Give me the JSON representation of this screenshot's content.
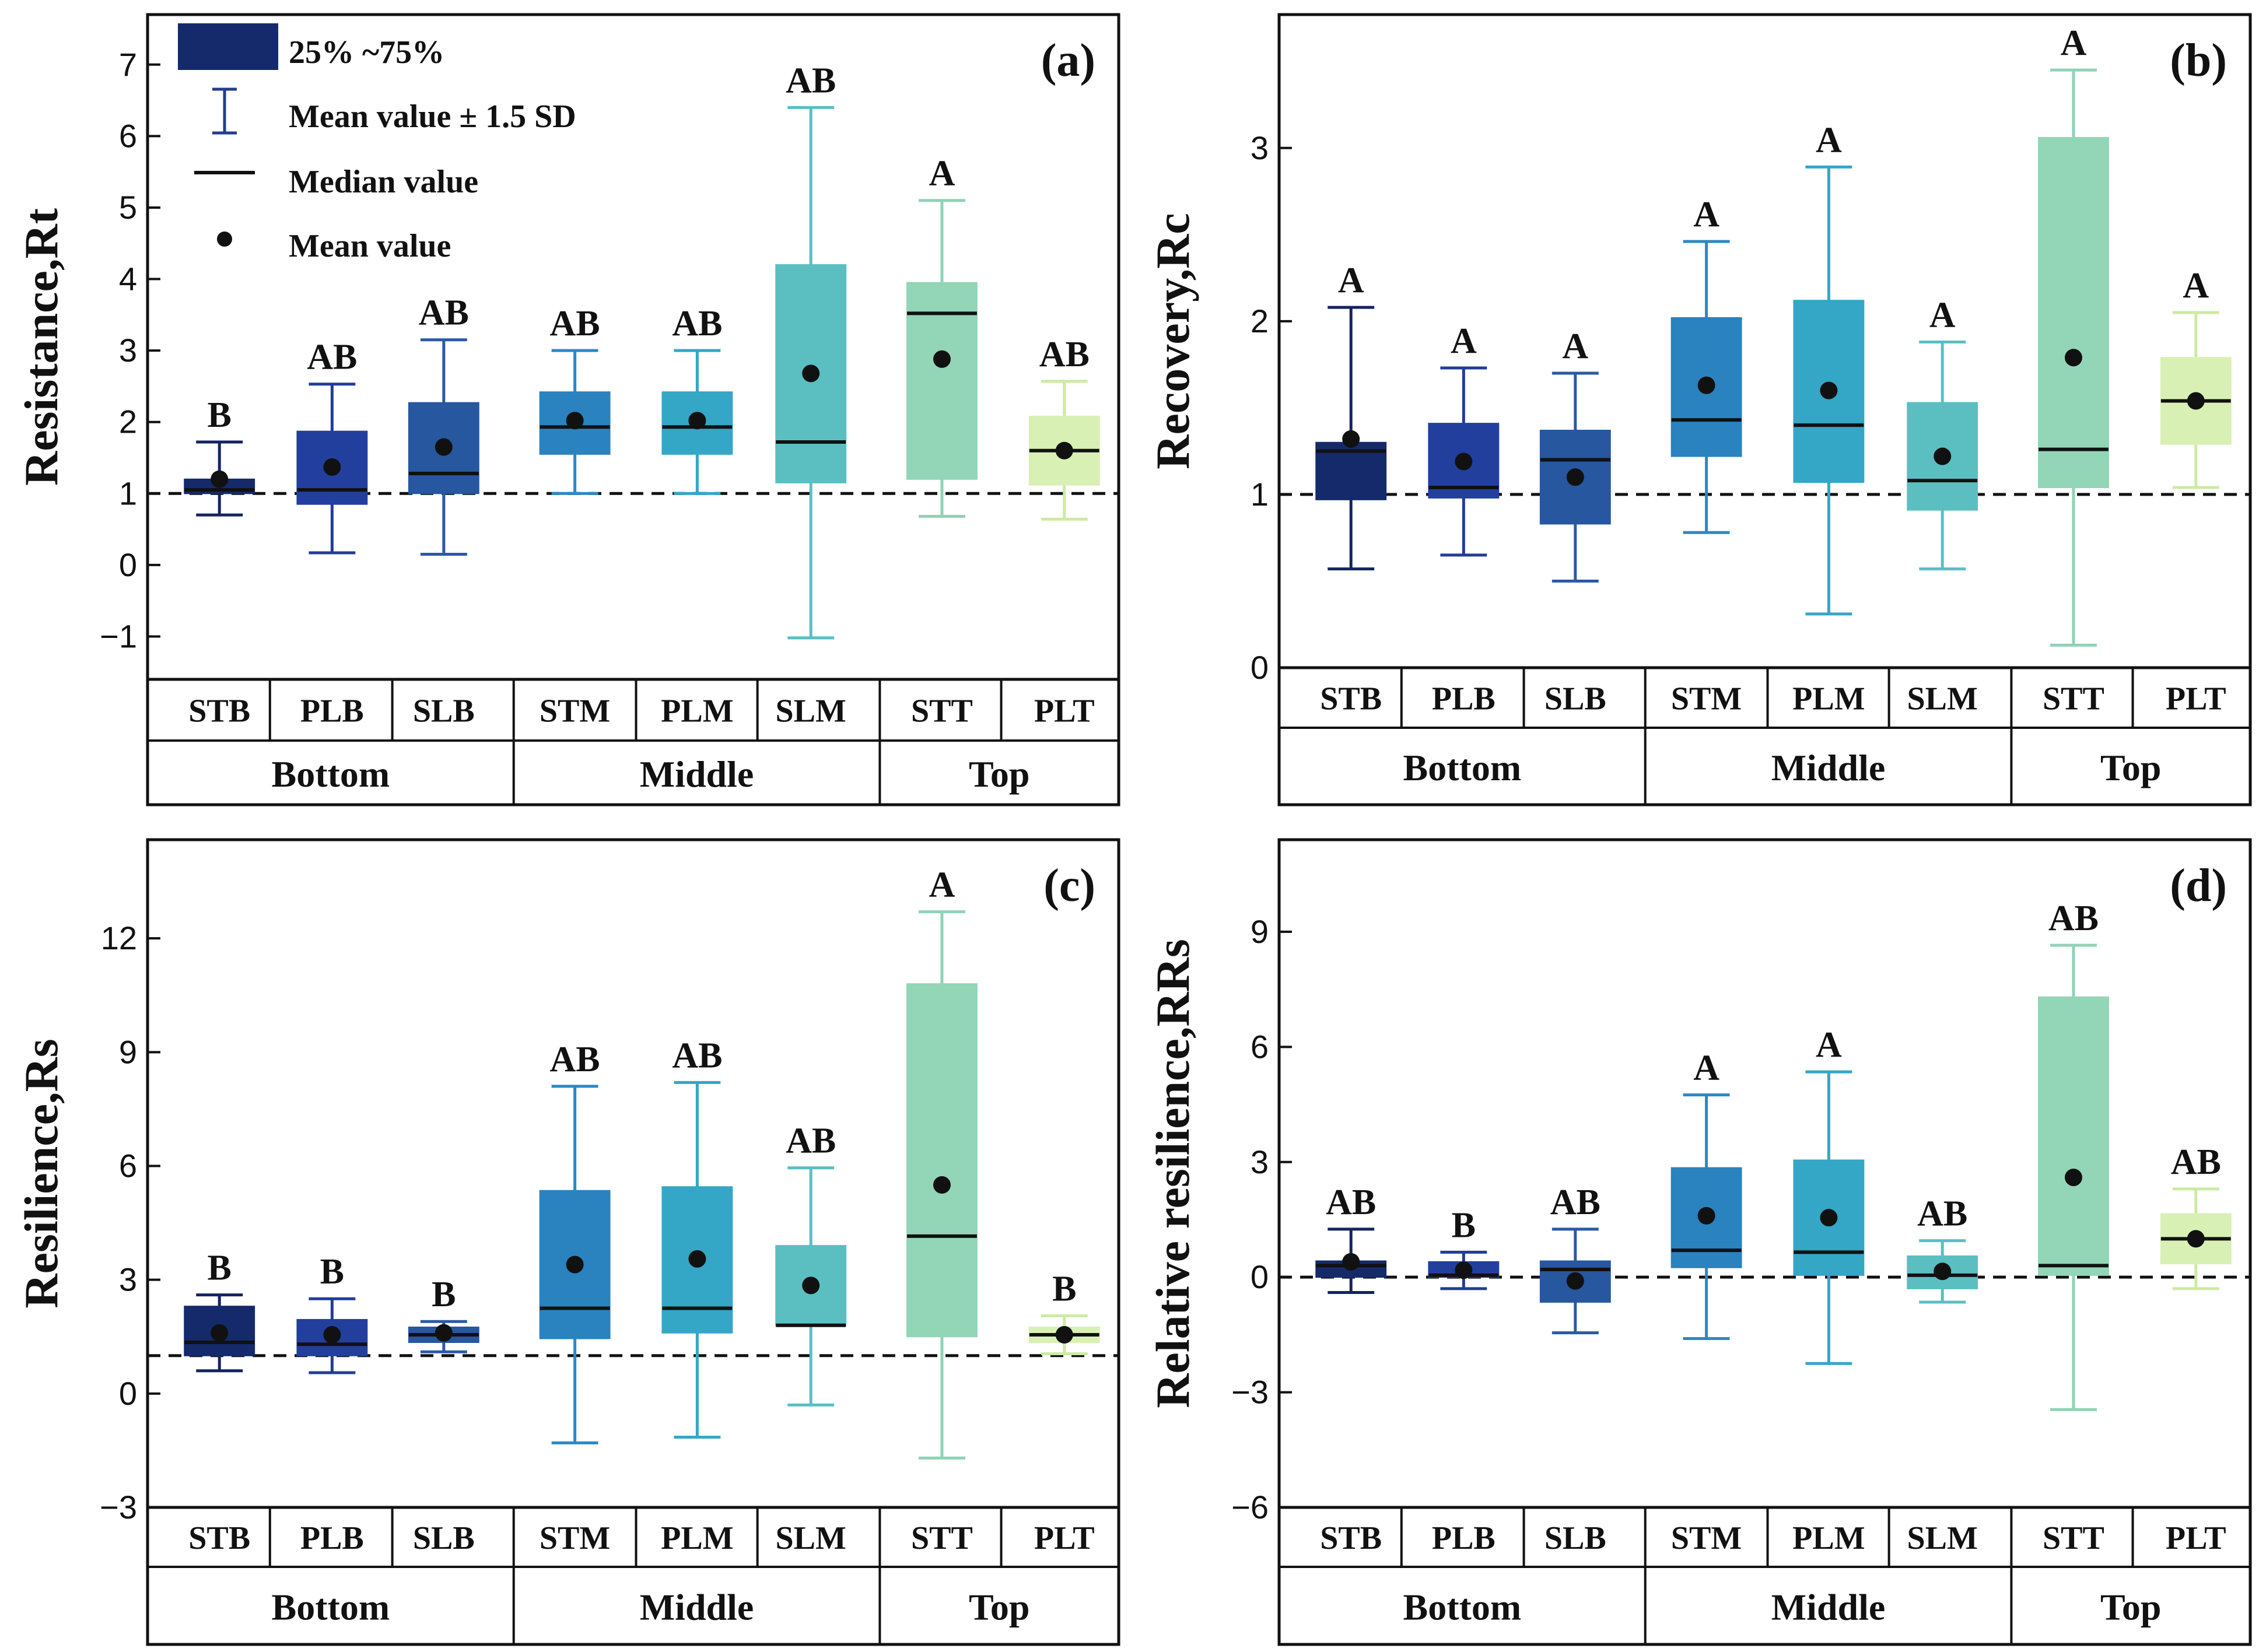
{
  "chart_data": [
    {
      "type": "box",
      "panel": "(a)",
      "ylabel": "Resistance,Rt",
      "ylim": [
        -1.6,
        7.7
      ],
      "yticks": [
        -1,
        0,
        1,
        2,
        3,
        4,
        5,
        6,
        7
      ],
      "reference_line": 1,
      "categories": [
        "STB",
        "PLB",
        "SLB",
        "STM",
        "PLM",
        "SLM",
        "STT",
        "PLT"
      ],
      "groups": [
        {
          "name": "Bottom",
          "span": 3
        },
        {
          "name": "Middle",
          "span": 3
        },
        {
          "name": "Top",
          "span": 2
        }
      ],
      "boxes": [
        {
          "q1": 1.0,
          "q3": 1.2,
          "median": 1.05,
          "mean": 1.2,
          "wlo": 0.7,
          "whi": 1.72,
          "sig": "B"
        },
        {
          "q1": 0.85,
          "q3": 1.87,
          "median": 1.05,
          "mean": 1.37,
          "wlo": 0.17,
          "whi": 2.53,
          "sig": "AB"
        },
        {
          "q1": 1.0,
          "q3": 2.27,
          "median": 1.28,
          "mean": 1.65,
          "wlo": 0.15,
          "whi": 3.15,
          "sig": "AB"
        },
        {
          "q1": 1.55,
          "q3": 2.42,
          "median": 1.93,
          "mean": 2.02,
          "wlo": 1.0,
          "whi": 3.0,
          "sig": "AB"
        },
        {
          "q1": 1.55,
          "q3": 2.42,
          "median": 1.93,
          "mean": 2.02,
          "wlo": 1.0,
          "whi": 3.0,
          "sig": "AB"
        },
        {
          "q1": 1.15,
          "q3": 4.2,
          "median": 1.72,
          "mean": 2.68,
          "wlo": -1.02,
          "whi": 6.4,
          "sig": "AB"
        },
        {
          "q1": 1.2,
          "q3": 3.95,
          "median": 3.52,
          "mean": 2.88,
          "wlo": 0.68,
          "whi": 5.1,
          "sig": "A"
        },
        {
          "q1": 1.12,
          "q3": 2.08,
          "median": 1.6,
          "mean": 1.6,
          "wlo": 0.64,
          "whi": 2.57,
          "sig": "AB"
        }
      ]
    },
    {
      "type": "box",
      "panel": "(b)",
      "ylabel": "Recovery,Rc",
      "ylim": [
        0,
        3.77
      ],
      "yticks": [
        0,
        1,
        2,
        3
      ],
      "reference_line": 1,
      "categories": [
        "STB",
        "PLB",
        "SLB",
        "STM",
        "PLM",
        "SLM",
        "STT",
        "PLT"
      ],
      "groups": [
        {
          "name": "Bottom",
          "span": 3
        },
        {
          "name": "Middle",
          "span": 3
        },
        {
          "name": "Top",
          "span": 2
        }
      ],
      "boxes": [
        {
          "q1": 0.97,
          "q3": 1.3,
          "median": 1.25,
          "mean": 1.32,
          "wlo": 0.57,
          "whi": 2.08,
          "sig": "A"
        },
        {
          "q1": 0.98,
          "q3": 1.41,
          "median": 1.04,
          "mean": 1.19,
          "wlo": 0.65,
          "whi": 1.73,
          "sig": "A"
        },
        {
          "q1": 0.83,
          "q3": 1.37,
          "median": 1.2,
          "mean": 1.1,
          "wlo": 0.5,
          "whi": 1.7,
          "sig": "A"
        },
        {
          "q1": 1.22,
          "q3": 2.02,
          "median": 1.43,
          "mean": 1.63,
          "wlo": 0.78,
          "whi": 2.46,
          "sig": "A"
        },
        {
          "q1": 1.07,
          "q3": 2.12,
          "median": 1.4,
          "mean": 1.6,
          "wlo": 0.31,
          "whi": 2.89,
          "sig": "A"
        },
        {
          "q1": 0.91,
          "q3": 1.53,
          "median": 1.08,
          "mean": 1.22,
          "wlo": 0.57,
          "whi": 1.88,
          "sig": "A"
        },
        {
          "q1": 1.04,
          "q3": 3.06,
          "median": 1.26,
          "mean": 1.79,
          "wlo": 0.13,
          "whi": 3.45,
          "sig": "A"
        },
        {
          "q1": 1.29,
          "q3": 1.79,
          "median": 1.54,
          "mean": 1.54,
          "wlo": 1.04,
          "whi": 2.05,
          "sig": "A"
        }
      ]
    },
    {
      "type": "box",
      "panel": "(c)",
      "ylabel": "Resilience,Rs",
      "ylim": [
        -3,
        14.6
      ],
      "yticks": [
        -3,
        0,
        3,
        6,
        9,
        12
      ],
      "reference_line": 1,
      "categories": [
        "STB",
        "PLB",
        "SLB",
        "STM",
        "PLM",
        "SLM",
        "STT",
        "PLT"
      ],
      "groups": [
        {
          "name": "Bottom",
          "span": 3
        },
        {
          "name": "Middle",
          "span": 3
        },
        {
          "name": "Top",
          "span": 2
        }
      ],
      "boxes": [
        {
          "q1": 1.0,
          "q3": 2.3,
          "median": 1.35,
          "mean": 1.6,
          "wlo": 0.6,
          "whi": 2.6,
          "sig": "B"
        },
        {
          "q1": 1.0,
          "q3": 1.95,
          "median": 1.3,
          "mean": 1.55,
          "wlo": 0.55,
          "whi": 2.5,
          "sig": "B"
        },
        {
          "q1": 1.35,
          "q3": 1.75,
          "median": 1.55,
          "mean": 1.6,
          "wlo": 1.1,
          "whi": 1.9,
          "sig": "B"
        },
        {
          "q1": 1.45,
          "q3": 5.35,
          "median": 2.25,
          "mean": 3.4,
          "wlo": -1.3,
          "whi": 8.1,
          "sig": "AB"
        },
        {
          "q1": 1.6,
          "q3": 5.45,
          "median": 2.25,
          "mean": 3.55,
          "wlo": -1.15,
          "whi": 8.2,
          "sig": "AB"
        },
        {
          "q1": 1.8,
          "q3": 3.9,
          "median": 1.8,
          "mean": 2.85,
          "wlo": -0.3,
          "whi": 5.95,
          "sig": "AB"
        },
        {
          "q1": 1.5,
          "q3": 10.8,
          "median": 4.15,
          "mean": 5.5,
          "wlo": -1.7,
          "whi": 12.7,
          "sig": "A"
        },
        {
          "q1": 1.35,
          "q3": 1.75,
          "median": 1.55,
          "mean": 1.55,
          "wlo": 1.05,
          "whi": 2.05,
          "sig": "B"
        }
      ]
    },
    {
      "type": "box",
      "panel": "(d)",
      "ylabel": "Relative resilience,RRs",
      "ylim": [
        -6,
        11.4
      ],
      "yticks": [
        -6,
        -3,
        0,
        3,
        6,
        9
      ],
      "reference_line": 0,
      "categories": [
        "STB",
        "PLB",
        "SLB",
        "STM",
        "PLM",
        "SLM",
        "STT",
        "PLT"
      ],
      "groups": [
        {
          "name": "Bottom",
          "span": 3
        },
        {
          "name": "Middle",
          "span": 3
        },
        {
          "name": "Top",
          "span": 2
        }
      ],
      "boxes": [
        {
          "q1": 0.0,
          "q3": 0.42,
          "median": 0.3,
          "mean": 0.4,
          "wlo": -0.4,
          "whi": 1.25,
          "sig": "AB"
        },
        {
          "q1": 0.0,
          "q3": 0.4,
          "median": 0.05,
          "mean": 0.18,
          "wlo": -0.3,
          "whi": 0.65,
          "sig": "B"
        },
        {
          "q1": -0.65,
          "q3": 0.42,
          "median": 0.2,
          "mean": -0.1,
          "wlo": -1.45,
          "whi": 1.25,
          "sig": "AB"
        },
        {
          "q1": 0.25,
          "q3": 2.85,
          "median": 0.7,
          "mean": 1.6,
          "wlo": -1.6,
          "whi": 4.75,
          "sig": "A"
        },
        {
          "q1": 0.05,
          "q3": 3.05,
          "median": 0.65,
          "mean": 1.55,
          "wlo": -2.25,
          "whi": 5.35,
          "sig": "A"
        },
        {
          "q1": -0.3,
          "q3": 0.55,
          "median": 0.05,
          "mean": 0.15,
          "wlo": -0.65,
          "whi": 0.95,
          "sig": "AB"
        },
        {
          "q1": 0.05,
          "q3": 7.3,
          "median": 0.3,
          "mean": 2.6,
          "wlo": -3.45,
          "whi": 8.65,
          "sig": "AB"
        },
        {
          "q1": 0.35,
          "q3": 1.65,
          "median": 1.0,
          "mean": 1.0,
          "wlo": -0.3,
          "whi": 2.3,
          "sig": "AB"
        }
      ]
    }
  ],
  "legend": {
    "box_label": "25% ~75%",
    "whisker_label": "Mean value ± 1.5 SD",
    "median_label": "Median value",
    "mean_label": "Mean value"
  },
  "colors": {
    "boxes": [
      "#152a6b",
      "#233f9e",
      "#26579f",
      "#2a82be",
      "#34a6c6",
      "#5bbfc2",
      "#93d5b7",
      "#d9f0b4"
    ],
    "whiskers": [
      "#13245f",
      "#223c96",
      "#2a5aa6",
      "#2c88c3",
      "#33a6c9",
      "#58bfc4",
      "#8ed3b6",
      "#cdeaa3"
    ]
  }
}
